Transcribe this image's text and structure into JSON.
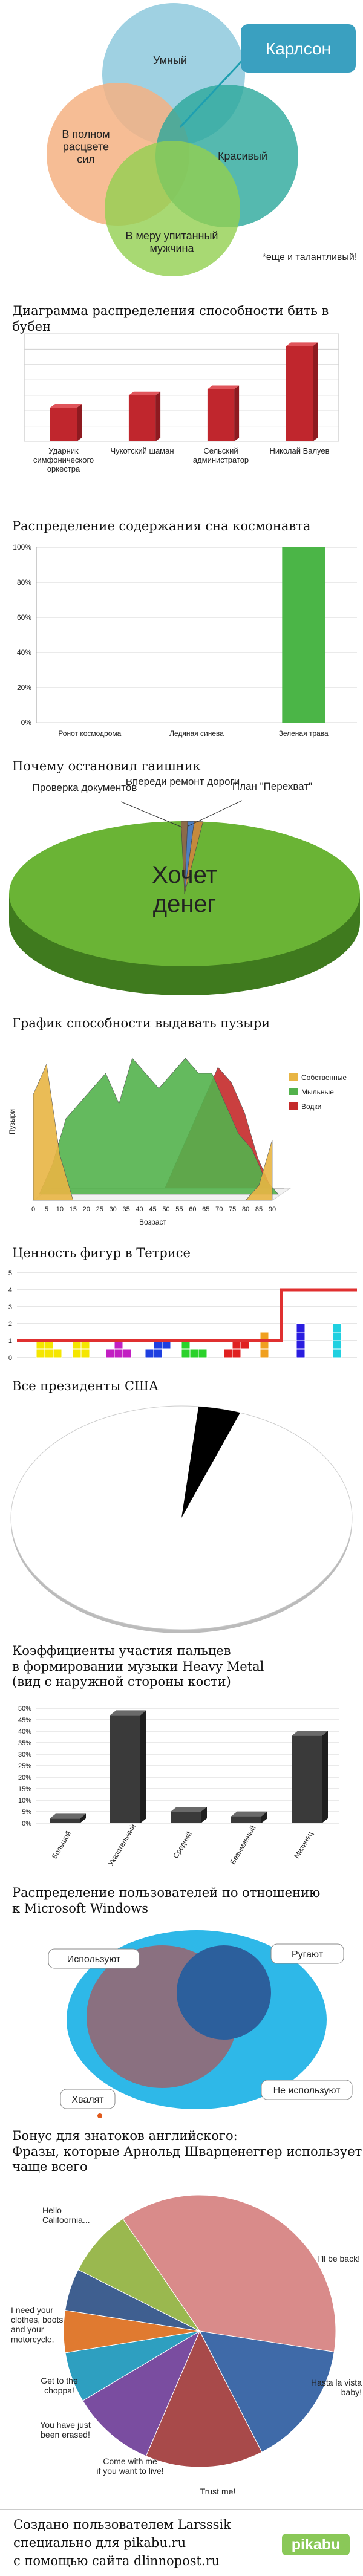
{
  "sections": {
    "s1": {
      "title": "",
      "label_karlson": "Карлсон",
      "label_smart": "Умный",
      "label_prime": "В полном\nрасцвете\nсил",
      "label_handsome": "Красивый",
      "label_plump": "В меру упитанный\nмужчина",
      "note": "*еще и талантливый!"
    },
    "s2": {
      "title": "Диаграмма распределения способности бить в бубен"
    },
    "s3": {
      "title": "Распределение содержания сна космонавта"
    },
    "s4": {
      "title": "Почему остановил гаишник"
    },
    "s5": {
      "title": "График способности выдавать пузыри"
    },
    "s6": {
      "title": "Ценность фигур в Тетрисе"
    },
    "s7": {
      "title": "Все президенты США"
    },
    "s8": {
      "title": "Коэффициенты участия пальцев\nв формировании музыки Heavy Metal\n(вид с наружной стороны кости)"
    },
    "s9": {
      "title": "Распределение пользователей по отношению\nк Microsoft Windows"
    },
    "s10": {
      "title": "Бонус для знатоков английского:\nФразы, которые Арнольд Шварценеггер использует\nчаще всего"
    }
  },
  "chart_data": [
    {
      "id": "karlson",
      "type": "diagram",
      "circles": [
        {
          "label": "Умный",
          "color": "#8ec9dd"
        },
        {
          "label": "В полном расцвете сил",
          "color": "#f4b183"
        },
        {
          "label": "Красивый",
          "color": "#2aa79b"
        },
        {
          "label": "В меру упитанный мужчина",
          "color": "#92d050"
        }
      ],
      "callout": "Карлсон*"
    },
    {
      "id": "tambourine",
      "type": "bar",
      "categories": [
        "Ударник\nсимфонического\nоркестра",
        "Чукотский шаман",
        "Сельский\nадминистратор",
        "Николай Валуев"
      ],
      "values": [
        22,
        30,
        34,
        62
      ],
      "ylim": [
        0,
        70
      ],
      "grid": true,
      "color": "#c0262d"
    },
    {
      "id": "cosmonaut",
      "type": "bar",
      "categories": [
        "Ронот космодрома",
        "Ледяная синева",
        "Зеленая трава"
      ],
      "values": [
        0,
        0,
        100
      ],
      "ylim": [
        0,
        100
      ],
      "yticks": [
        "0%",
        "20%",
        "40%",
        "60%",
        "80%",
        "100%"
      ],
      "grid": true,
      "color": "#4bb547"
    },
    {
      "id": "traffic",
      "type": "pie",
      "slices": [
        {
          "label": "Хочет денег",
          "value": 98,
          "color": "#6ab435"
        },
        {
          "label": "Проверка документов",
          "value": 0.6,
          "color": "#8b6a4a"
        },
        {
          "label": "Впереди ремонт дороги",
          "value": 0.6,
          "color": "#4e7fc0"
        },
        {
          "label": "План \"Перехват\"",
          "value": 0.8,
          "color": "#c48a3d"
        }
      ]
    },
    {
      "id": "bubbles",
      "type": "area",
      "xlabel": "Возраст",
      "ylabel": "Пузыри",
      "categories": [
        "0",
        "5",
        "10",
        "15",
        "20",
        "25",
        "30",
        "35",
        "40",
        "45",
        "50",
        "55",
        "60",
        "65",
        "70",
        "75",
        "80",
        "85",
        "90"
      ],
      "series": [
        {
          "name": "Собственные",
          "color": "#e8b544",
          "values": [
            7,
            9,
            3,
            0,
            0,
            0,
            0,
            0,
            0,
            0,
            0,
            0,
            0,
            0,
            0,
            0,
            0,
            1,
            4
          ]
        },
        {
          "name": "Мыльные",
          "color": "#53b24c",
          "values": [
            0,
            2,
            5,
            6,
            7,
            8,
            6,
            9,
            8,
            7,
            8,
            9,
            8,
            8,
            6,
            4,
            3,
            1,
            0
          ]
        },
        {
          "name": "Водки",
          "color": "#c42a2a",
          "values": [
            0,
            0,
            0,
            0,
            0,
            0,
            0,
            0,
            0,
            0,
            2,
            4,
            6,
            8,
            7,
            5,
            2,
            0,
            0
          ]
        }
      ],
      "ylim": [
        0,
        10
      ]
    },
    {
      "id": "tetris",
      "type": "step",
      "yticks": [
        "0",
        "1",
        "2",
        "3",
        "4",
        "5"
      ],
      "values": [
        1,
        1,
        1,
        1,
        1,
        1,
        1,
        4,
        4
      ],
      "ylim": [
        0,
        5
      ],
      "series": [
        {
          "name": "",
          "color": "#e03030"
        }
      ]
    },
    {
      "id": "presidents",
      "type": "pie",
      "slices": [
        {
          "label": "",
          "value": 96,
          "color": "#ffffff"
        },
        {
          "label": "",
          "value": 4,
          "color": "#000000"
        }
      ]
    },
    {
      "id": "fingers",
      "type": "bar",
      "categories": [
        "Большой",
        "Указательный",
        "Средний",
        "Безымянный",
        "Мизинец"
      ],
      "values": [
        2,
        47,
        5,
        3,
        38
      ],
      "ylim": [
        0,
        50
      ],
      "yticks": [
        "0%",
        "5%",
        "10%",
        "15%",
        "20%",
        "25%",
        "30%",
        "35%",
        "40%",
        "45%",
        "50%"
      ],
      "grid": true,
      "color": "#3a3a3a"
    },
    {
      "id": "windows",
      "type": "venn",
      "sets": [
        {
          "label": "Не используют",
          "color": "#2eb8e8"
        },
        {
          "label": "Используют",
          "color": "#8a7080"
        },
        {
          "label": "Ругают",
          "color": "#2c5f9c"
        },
        {
          "label": "Хвалят",
          "color": "#e05a1c"
        }
      ]
    },
    {
      "id": "arnold",
      "type": "pie",
      "slices": [
        {
          "label": "Hello\nCalifoornia...",
          "value": 37,
          "color": "#d98b8a"
        },
        {
          "label": "I'll be back!",
          "value": 15,
          "color": "#3f6aa8"
        },
        {
          "label": "Hasta la vista\nbaby!",
          "value": 14,
          "color": "#a84a4a"
        },
        {
          "label": "Trust me!",
          "value": 10,
          "color": "#7a4da0"
        },
        {
          "label": "Come with me\nif you want to live!",
          "value": 6,
          "color": "#2e9fc0"
        },
        {
          "label": "You have just\nbeen erased!",
          "value": 5,
          "color": "#e07a30"
        },
        {
          "label": "Get to the\nchoppa!",
          "value": 5,
          "color": "#3f5f90"
        },
        {
          "label": "I need your\nclothes, boots\nand your\nmotorcycle.",
          "value": 8,
          "color": "#9ab84f"
        }
      ]
    }
  ],
  "footer": {
    "line1": "Создано пользователем Larsssik",
    "line2": "специально для pikabu.ru",
    "line3": "с помощью сайта dlinnopost.ru",
    "brand": "pikabu"
  }
}
